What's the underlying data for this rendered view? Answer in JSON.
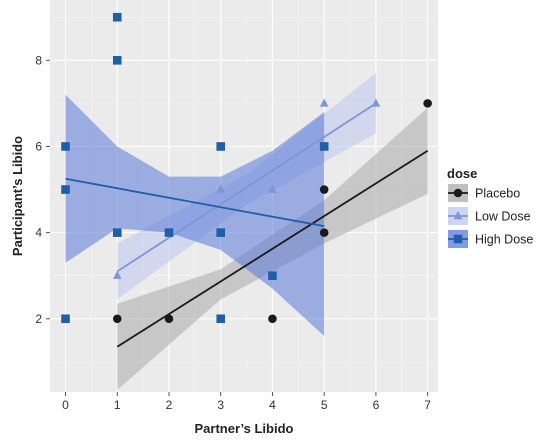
{
  "chart_data": {
    "type": "scatter",
    "xlabel": "Partner’s Libido",
    "ylabel": "Participant’s Libido",
    "xlim": [
      -0.3,
      7.2
    ],
    "ylim": [
      0.3,
      9.4
    ],
    "xticks": [
      0,
      1,
      2,
      3,
      4,
      5,
      6,
      7
    ],
    "yticks": [
      2,
      4,
      6,
      8
    ],
    "grid": true,
    "legend": {
      "title": "dose",
      "placement": "right"
    },
    "series": [
      {
        "name": "Placebo",
        "marker": "circle",
        "color": "#1a1a1a",
        "ribbon_color": "#a9a9a9",
        "points": [
          [
            1,
            2
          ],
          [
            2,
            2
          ],
          [
            4,
            2
          ],
          [
            5,
            4
          ],
          [
            5,
            5
          ],
          [
            7,
            7
          ]
        ],
        "fit": {
          "x_start": 1,
          "x_end": 7,
          "y_start": 1.35,
          "y_end": 5.9
        },
        "ribbon": {
          "x": [
            1,
            3,
            5,
            7
          ],
          "lower": [
            0.35,
            2.45,
            3.75,
            4.9
          ],
          "upper": [
            2.35,
            3.15,
            4.75,
            6.9
          ]
        }
      },
      {
        "name": "Low Dose",
        "marker": "triangle",
        "color": "#7f95d8",
        "ribbon_color": "#bcc6ee",
        "points": [
          [
            1,
            3
          ],
          [
            2,
            4
          ],
          [
            3,
            5
          ],
          [
            4,
            5
          ],
          [
            5,
            7
          ],
          [
            6,
            7
          ]
        ],
        "fit": {
          "x_start": 1,
          "x_end": 6,
          "y_start": 3.1,
          "y_end": 7.0
        },
        "ribbon": {
          "x": [
            1,
            3.5,
            6
          ],
          "lower": [
            2.45,
            4.65,
            6.3
          ],
          "upper": [
            3.75,
            5.35,
            7.7
          ]
        }
      },
      {
        "name": "High Dose",
        "marker": "square",
        "color": "#1f5fa8",
        "ribbon_color": "#5a79d9",
        "points": [
          [
            0,
            2
          ],
          [
            0,
            5
          ],
          [
            0,
            6
          ],
          [
            1,
            4
          ],
          [
            1,
            8
          ],
          [
            1,
            9
          ],
          [
            2,
            4
          ],
          [
            3,
            2
          ],
          [
            3,
            4
          ],
          [
            3,
            6
          ],
          [
            4,
            3
          ],
          [
            5,
            6
          ]
        ],
        "fit": {
          "x_start": 0,
          "x_end": 5,
          "y_start": 5.25,
          "y_end": 4.15
        },
        "ribbon": {
          "x": [
            0,
            1,
            2,
            3,
            4,
            5
          ],
          "lower": [
            3.3,
            4.1,
            4.0,
            3.6,
            2.7,
            1.6
          ],
          "upper": [
            7.2,
            6.0,
            5.3,
            5.3,
            5.9,
            6.8
          ]
        }
      }
    ]
  }
}
